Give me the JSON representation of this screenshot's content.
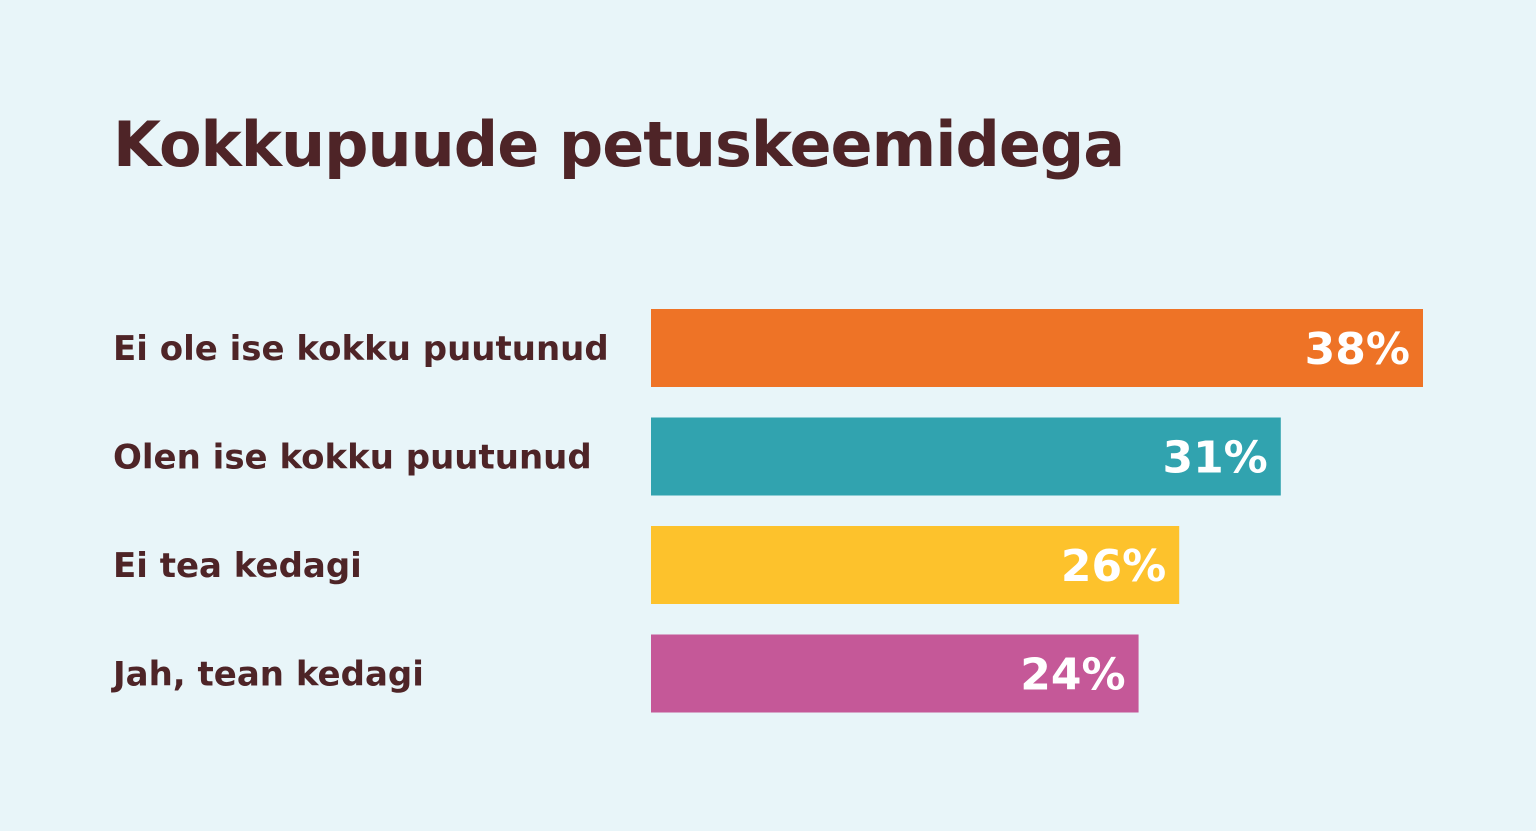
{
  "title": "Kokkupuude petuskeemidega",
  "chart_data": {
    "type": "bar",
    "orientation": "horizontal",
    "title": "Kokkupuude petuskeemidega",
    "categories": [
      "Ei ole ise kokku puutunud",
      "Olen ise kokku puutunud",
      "Ei tea kedagi",
      "Jah, tean kedagi"
    ],
    "values": [
      38,
      31,
      26,
      24
    ],
    "value_labels": [
      "38%",
      "31%",
      "26%",
      "24%"
    ],
    "colors": [
      "#ee7326",
      "#31a3af",
      "#fdc22c",
      "#c55898"
    ],
    "xlim": [
      0,
      38
    ],
    "grid": false,
    "legend": "none"
  },
  "colors": {
    "background": "#e8f5f9",
    "text": "#4e2427",
    "value_text": "#ffffff"
  }
}
